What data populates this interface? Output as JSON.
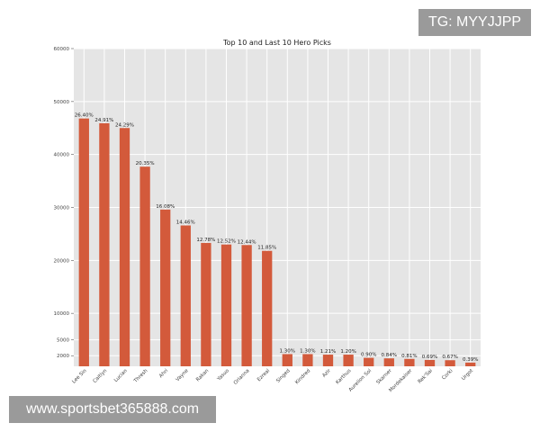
{
  "watermarks": {
    "top_right": "TG: MYYJJPP",
    "bottom_left": "www.sportsbet365888.com"
  },
  "chart_data": {
    "type": "bar",
    "title": "Top 10 and Last 10 Hero Picks",
    "xlabel": "",
    "ylabel": "",
    "categories": [
      "Lee Sin",
      "Caitlyn",
      "Lucian",
      "Thresh",
      "Ahri",
      "Vayne",
      "Rakan",
      "Yasuo",
      "Orianna",
      "Ezreal",
      "Singed",
      "Kindred",
      "Azir",
      "Karthus",
      "Aurelion Sol",
      "Skarner",
      "Mordekaiser",
      "Rek'Sai",
      "Corki",
      "Urgot"
    ],
    "values": [
      46800,
      45900,
      45000,
      37700,
      29600,
      26600,
      23300,
      23000,
      22900,
      21800,
      2300,
      2300,
      2200,
      2200,
      1600,
      1500,
      1400,
      1200,
      1150,
      700
    ],
    "data_labels": [
      "26.40%",
      "24.91%",
      "24.29%",
      "20.35%",
      "16.08%",
      "14.46%",
      "12.78%",
      "12.52%",
      "12.44%",
      "11.85%",
      "1.30%",
      "1.30%",
      "1.21%",
      "1.20%",
      "0.90%",
      "0.84%",
      "0.81%",
      "0.69%",
      "0.67%",
      "0.39%"
    ],
    "yticks": [
      2000,
      5000,
      10000,
      20000,
      30000,
      40000,
      50000,
      60000
    ],
    "ylim": [
      0,
      60000
    ],
    "grid": true,
    "bar_color": "#d35a3b",
    "plot_background": "#e5e5e5",
    "grid_color": "#ffffff"
  }
}
